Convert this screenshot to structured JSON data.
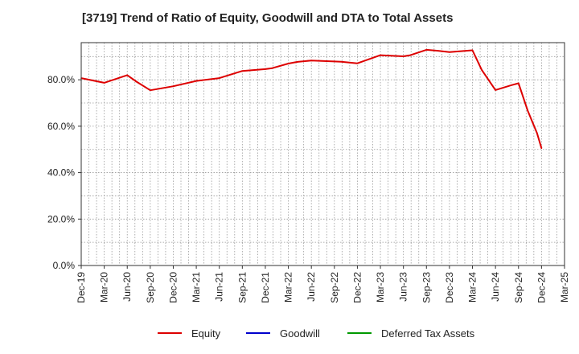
{
  "chart_data": {
    "type": "line",
    "title": "[3719]  Trend of Ratio of Equity, Goodwill and DTA to Total Assets",
    "xlabel": "",
    "ylabel": "",
    "ylim": [
      0,
      96
    ],
    "yticks": [
      0,
      20,
      40,
      60,
      80
    ],
    "ytick_labels": [
      "0.0%",
      "20.0%",
      "40.0%",
      "60.0%",
      "80.0%"
    ],
    "xtick_labels": [
      "Dec-19",
      "Mar-20",
      "Jun-20",
      "Sep-20",
      "Dec-20",
      "Mar-21",
      "Jun-21",
      "Sep-21",
      "Dec-21",
      "Mar-22",
      "Jun-22",
      "Sep-22",
      "Dec-22",
      "Mar-23",
      "Jun-23",
      "Sep-23",
      "Dec-23",
      "Mar-24",
      "Jun-24",
      "Sep-24",
      "Dec-24",
      "Mar-25"
    ],
    "grid": true,
    "legend_position": "bottom",
    "series": [
      {
        "name": "Equity",
        "color": "#dd0000",
        "x": [
          0,
          1,
          2,
          2.4,
          3,
          4,
          5,
          6,
          7,
          8,
          8.3,
          9,
          9.4,
          10,
          11,
          11.3,
          12,
          13,
          14,
          14.3,
          15,
          15.5,
          16,
          17,
          17.4,
          18,
          18.7,
          19,
          19.4,
          19.8,
          20
        ],
        "values": [
          80.7,
          78.7,
          82.0,
          79.2,
          75.5,
          77.2,
          79.5,
          80.7,
          83.8,
          84.6,
          85.0,
          87.0,
          87.7,
          88.3,
          87.9,
          87.8,
          87.1,
          90.6,
          90.1,
          90.6,
          92.9,
          92.5,
          91.9,
          92.7,
          84.3,
          75.6,
          77.7,
          78.5,
          66.7,
          57.1,
          50.5
        ]
      },
      {
        "name": "Goodwill",
        "color": "#0000cc",
        "x": [],
        "values": []
      },
      {
        "name": "Deferred Tax Assets",
        "color": "#009900",
        "x": [],
        "values": []
      }
    ]
  }
}
